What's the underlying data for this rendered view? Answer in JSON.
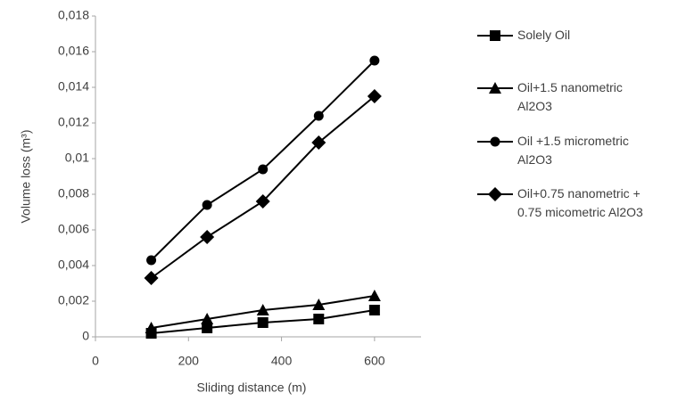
{
  "chart_data": {
    "type": "line",
    "x": [
      120,
      240,
      360,
      480,
      600
    ],
    "xlabel": "Sliding distance (m)",
    "ylabel": "Volume loss (m³)",
    "xlim": [
      0,
      700
    ],
    "xticks": [
      0,
      200,
      400,
      600
    ],
    "ylim": [
      0,
      0.018
    ],
    "yticks": [
      0,
      {
        "value": 0.002,
        "label": "0,002"
      },
      {
        "value": 0.004,
        "label": "0,004"
      },
      {
        "value": 0.006,
        "label": "0,006"
      },
      {
        "value": 0.008,
        "label": "0,008"
      },
      {
        "value": 0.01,
        "label": "0,01"
      },
      {
        "value": 0.012,
        "label": "0,012"
      },
      {
        "value": 0.014,
        "label": "0,014"
      },
      {
        "value": 0.016,
        "label": "0,016"
      },
      {
        "value": 0.018,
        "label": "0,018"
      }
    ],
    "grid": false,
    "legend": "right",
    "series": [
      {
        "name": "Solely Oil",
        "color": "#000000",
        "marker": "square",
        "values": [
          0.0002,
          0.0005,
          0.0008,
          0.001,
          0.0015
        ]
      },
      {
        "name": "Oil+1.5 nanometric Al2O3",
        "color": "#000000",
        "marker": "triangle",
        "values": [
          0.0005,
          0.001,
          0.0015,
          0.0018,
          0.0023
        ]
      },
      {
        "name": "Oil +1.5 micrometric Al2O3",
        "color": "#000000",
        "marker": "circle",
        "values": [
          0.0043,
          0.0074,
          0.0094,
          0.0124,
          0.0155
        ]
      },
      {
        "name": "Oil+0.75 nanometric + 0.75 micometric Al2O3",
        "color": "#000000",
        "marker": "diamond",
        "values": [
          0.0033,
          0.0056,
          0.0076,
          0.0109,
          0.0135
        ]
      }
    ]
  }
}
